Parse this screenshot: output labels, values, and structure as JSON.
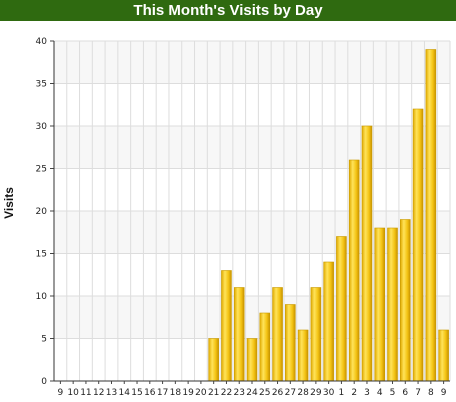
{
  "chart_data": {
    "type": "bar",
    "title": "This Month's Visits by Day",
    "ylabel": "Visits",
    "xlabel": "",
    "ylim": [
      0,
      40
    ],
    "yticks": [
      0,
      5,
      10,
      15,
      20,
      25,
      30,
      35,
      40
    ],
    "grid": true,
    "categories": [
      "9",
      "10",
      "11",
      "12",
      "13",
      "14",
      "15",
      "16",
      "17",
      "18",
      "19",
      "20",
      "21",
      "22",
      "23",
      "24",
      "25",
      "26",
      "27",
      "28",
      "29",
      "30",
      "1",
      "2",
      "3",
      "4",
      "5",
      "6",
      "7",
      "8",
      "9"
    ],
    "values": [
      0,
      0,
      0,
      0,
      0,
      0,
      0,
      0,
      0,
      0,
      0,
      0,
      5,
      13,
      11,
      5,
      8,
      11,
      9,
      6,
      11,
      14,
      17,
      26,
      30,
      18,
      18,
      19,
      32,
      39,
      6
    ]
  },
  "colors": {
    "title_bar": "#2f6a10",
    "bar_fill": "#f2c818",
    "bar_edge": "#c89a00",
    "grid": "#dddddd",
    "plot_bg_band": "#f7f7f7"
  }
}
